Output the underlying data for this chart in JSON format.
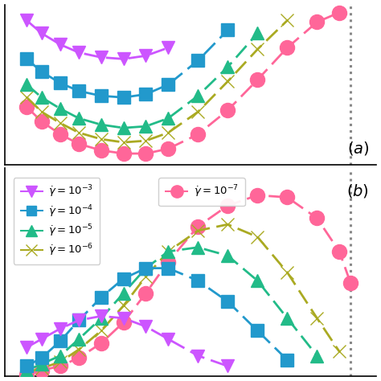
{
  "colors": {
    "gamma_3": "#cc55ff",
    "gamma_4": "#2299cc",
    "gamma_5": "#22bb88",
    "gamma_6": "#aaaa22",
    "gamma_7": "#ff6699"
  },
  "dotted_line_x": 0.93,
  "panel_a_label": "$(a)$",
  "panel_b_label": "$(b)$",
  "series_order": [
    "gamma_7",
    "gamma_6",
    "gamma_5",
    "gamma_4",
    "gamma_3"
  ],
  "markers": {
    "gamma_3": "v",
    "gamma_4": "s",
    "gamma_5": "^",
    "gamma_6": "x",
    "gamma_7": "o"
  },
  "marker_sizes": {
    "gamma_3": 12,
    "gamma_4": 11,
    "gamma_5": 12,
    "gamma_6": 12,
    "gamma_7": 13
  },
  "panel_a": {
    "gamma_3": {
      "x": [
        0.06,
        0.1,
        0.15,
        0.2,
        0.26,
        0.32,
        0.38,
        0.44
      ],
      "y": [
        0.9,
        0.82,
        0.75,
        0.7,
        0.67,
        0.66,
        0.68,
        0.73
      ]
    },
    "gamma_4": {
      "x": [
        0.06,
        0.1,
        0.15,
        0.2,
        0.26,
        0.32,
        0.38,
        0.44,
        0.52,
        0.6
      ],
      "y": [
        0.66,
        0.58,
        0.51,
        0.46,
        0.43,
        0.42,
        0.44,
        0.5,
        0.65,
        0.84
      ]
    },
    "gamma_5": {
      "x": [
        0.06,
        0.1,
        0.15,
        0.2,
        0.26,
        0.32,
        0.38,
        0.44,
        0.52,
        0.6,
        0.68
      ],
      "y": [
        0.5,
        0.42,
        0.35,
        0.29,
        0.25,
        0.23,
        0.24,
        0.29,
        0.43,
        0.61,
        0.82
      ]
    },
    "gamma_6": {
      "x": [
        0.06,
        0.1,
        0.15,
        0.2,
        0.26,
        0.32,
        0.38,
        0.44,
        0.52,
        0.6,
        0.68,
        0.76
      ],
      "y": [
        0.42,
        0.33,
        0.26,
        0.2,
        0.16,
        0.14,
        0.15,
        0.2,
        0.33,
        0.52,
        0.72,
        0.9
      ]
    },
    "gamma_7": {
      "x": [
        0.06,
        0.1,
        0.15,
        0.2,
        0.26,
        0.32,
        0.38,
        0.44,
        0.52,
        0.6,
        0.68,
        0.76,
        0.84,
        0.9
      ],
      "y": [
        0.36,
        0.27,
        0.19,
        0.13,
        0.09,
        0.07,
        0.07,
        0.1,
        0.19,
        0.34,
        0.53,
        0.73,
        0.89,
        0.95
      ]
    }
  },
  "panel_b": {
    "gamma_3": {
      "x": [
        0.06,
        0.1,
        0.15,
        0.2,
        0.26,
        0.32,
        0.38,
        0.44,
        0.52,
        0.6
      ],
      "y": [
        0.14,
        0.18,
        0.23,
        0.27,
        0.29,
        0.28,
        0.24,
        0.18,
        0.1,
        0.05
      ]
    },
    "gamma_4": {
      "x": [
        0.06,
        0.1,
        0.15,
        0.2,
        0.26,
        0.32,
        0.38,
        0.44,
        0.52,
        0.6,
        0.68,
        0.76
      ],
      "y": [
        0.05,
        0.09,
        0.17,
        0.27,
        0.38,
        0.47,
        0.52,
        0.52,
        0.46,
        0.36,
        0.22,
        0.08
      ]
    },
    "gamma_5": {
      "x": [
        0.06,
        0.1,
        0.15,
        0.2,
        0.26,
        0.32,
        0.38,
        0.44,
        0.52,
        0.6,
        0.68,
        0.76,
        0.84
      ],
      "y": [
        0.03,
        0.06,
        0.1,
        0.18,
        0.28,
        0.4,
        0.52,
        0.6,
        0.62,
        0.58,
        0.46,
        0.28,
        0.1
      ]
    },
    "gamma_6": {
      "x": [
        0.06,
        0.1,
        0.15,
        0.2,
        0.26,
        0.32,
        0.38,
        0.44,
        0.52,
        0.6,
        0.68,
        0.76,
        0.84,
        0.9
      ],
      "y": [
        0.02,
        0.04,
        0.07,
        0.13,
        0.22,
        0.34,
        0.48,
        0.6,
        0.7,
        0.73,
        0.67,
        0.5,
        0.28,
        0.12
      ]
    },
    "gamma_7": {
      "x": [
        0.06,
        0.1,
        0.15,
        0.2,
        0.26,
        0.32,
        0.38,
        0.44,
        0.52,
        0.6,
        0.68,
        0.76,
        0.84,
        0.9,
        0.93
      ],
      "y": [
        0.01,
        0.03,
        0.05,
        0.09,
        0.16,
        0.26,
        0.4,
        0.55,
        0.72,
        0.82,
        0.87,
        0.86,
        0.76,
        0.6,
        0.45
      ]
    }
  },
  "legend": {
    "gamma_3": "$\\dot{\\gamma} = 10^{-3}$",
    "gamma_4": "$\\dot{\\gamma} = 10^{-4}$",
    "gamma_5": "$\\dot{\\gamma} = 10^{-5}$",
    "gamma_6": "$\\dot{\\gamma} = 10^{-6}$",
    "gamma_7": "$\\dot{\\gamma} = 10^{-7}$"
  }
}
